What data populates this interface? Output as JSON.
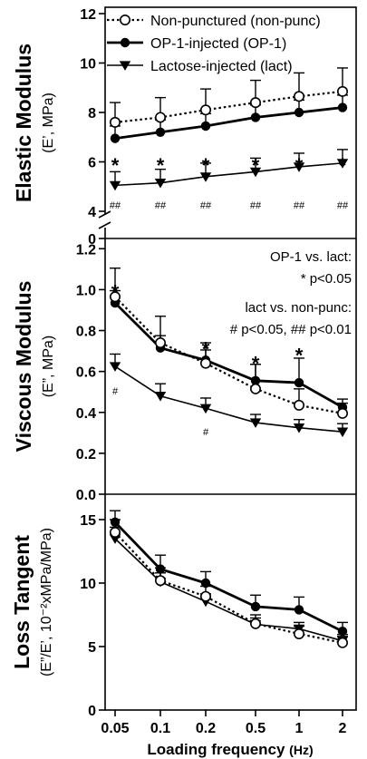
{
  "chart_data": [
    {
      "type": "line",
      "x": [
        0.05,
        0.1,
        0.2,
        0.5,
        1,
        2
      ],
      "ylabel_main": "Elastic Modulus",
      "ylabel_sub": "(E’, MPa)",
      "ylim": [
        4,
        12
      ],
      "yticks": [
        4,
        6,
        8,
        10,
        12
      ],
      "axis_break_tick": "0",
      "legend": [
        {
          "label": "Non-punctured (non-punc)",
          "marker": "open-circle",
          "line": "dotted"
        },
        {
          "label": "OP-1-injected (OP-1)",
          "marker": "filled-circle",
          "line": "solid-thick"
        },
        {
          "label": "Lactose-injected (lact)",
          "marker": "filled-triangle-down",
          "line": "solid"
        }
      ],
      "series": [
        {
          "key": "nonpunc",
          "values": [
            7.6,
            7.8,
            8.1,
            8.4,
            8.65,
            8.85
          ],
          "err": [
            0.8,
            0.8,
            0.85,
            0.9,
            0.95,
            0.95
          ]
        },
        {
          "key": "op1",
          "values": [
            6.95,
            7.2,
            7.45,
            7.8,
            8.0,
            8.2
          ],
          "err": [
            0.5,
            0.5,
            0.5,
            0.5,
            0.5,
            0.5
          ]
        },
        {
          "key": "lact",
          "values": [
            5.05,
            5.15,
            5.4,
            5.6,
            5.8,
            5.95
          ],
          "err": [
            0.55,
            0.55,
            0.55,
            0.55,
            0.55,
            0.55
          ]
        }
      ],
      "annotations": {
        "star": "*",
        "star_y": 6.1,
        "hash": "##",
        "hash_y": 4.25
      }
    },
    {
      "type": "line",
      "x": [
        0.05,
        0.1,
        0.2,
        0.5,
        1,
        2
      ],
      "ylabel_main": "Viscous Modulus",
      "ylabel_sub": "(E”, MPa)",
      "ylim": [
        0,
        1.25
      ],
      "yticks": [
        0.0,
        0.2,
        0.4,
        0.6,
        0.8,
        1.0,
        1.2
      ],
      "series": [
        {
          "key": "nonpunc",
          "values": [
            0.965,
            0.74,
            0.64,
            0.515,
            0.435,
            0.395
          ],
          "err": [
            0.14,
            0.13,
            0.1,
            0.12,
            0.08,
            0.05
          ]
        },
        {
          "key": "op1",
          "values": [
            0.935,
            0.715,
            0.655,
            0.555,
            0.545,
            0.425
          ],
          "err": [
            0.06,
            0.06,
            0.05,
            0.08,
            0.12,
            0.04
          ]
        },
        {
          "key": "lact",
          "values": [
            0.625,
            0.48,
            0.42,
            0.35,
            0.325,
            0.305
          ],
          "err": [
            0.06,
            0.06,
            0.05,
            0.04,
            0.04,
            0.04
          ]
        }
      ],
      "annotations": {
        "stars": [
          {
            "x": 0.05,
            "y": 1.0
          },
          {
            "x": 0.2,
            "y": 0.72
          },
          {
            "x": 0.5,
            "y": 0.65
          },
          {
            "x": 1,
            "y": 0.69
          }
        ],
        "hashes": [
          {
            "x": 0.05,
            "y": 0.505
          },
          {
            "x": 0.2,
            "y": 0.305
          }
        ],
        "star": "*",
        "hash": "#",
        "legend_lines": [
          "OP-1 vs. lact:",
          "* p<0.05",
          "lact vs. non-punc:",
          "# p<0.05, ## p<0.01"
        ]
      }
    },
    {
      "type": "line",
      "x": [
        0.05,
        0.1,
        0.2,
        0.5,
        1,
        2
      ],
      "ylabel_main": "Loss Tangent",
      "ylabel_sub": "(E”/E’, 10⁻²xMPa/MPa)",
      "ylim": [
        0,
        17
      ],
      "yticks": [
        0,
        5,
        10,
        15
      ],
      "xlabel_main": "Loading frequency",
      "xlabel_sub": "(Hz)",
      "xticklabels": [
        "0.05",
        "0.1",
        "0.2",
        "0.5",
        "1",
        "2"
      ],
      "series": [
        {
          "key": "nonpunc",
          "values": [
            14.0,
            10.2,
            8.95,
            6.8,
            6.0,
            5.3
          ],
          "err": [
            1.0,
            1.0,
            0.8,
            0.7,
            0.6,
            0.5
          ]
        },
        {
          "key": "op1",
          "values": [
            14.8,
            11.1,
            10.0,
            8.15,
            7.9,
            6.2
          ],
          "err": [
            0.9,
            1.1,
            0.9,
            0.9,
            1.0,
            0.7
          ]
        },
        {
          "key": "lact",
          "values": [
            13.5,
            10.1,
            8.55,
            6.75,
            6.4,
            5.45
          ],
          "err": [
            0.9,
            0.7,
            0.6,
            0.5,
            0.5,
            0.5
          ]
        }
      ]
    }
  ]
}
